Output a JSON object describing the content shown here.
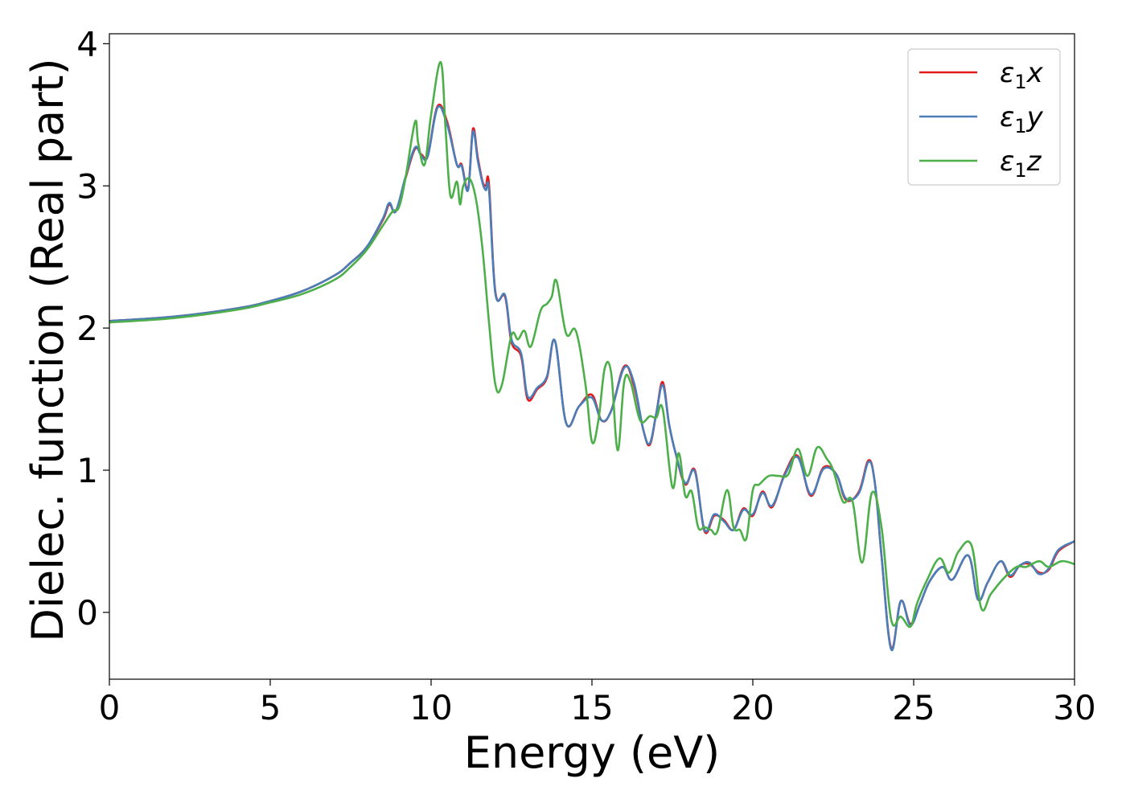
{
  "chart_data": {
    "type": "line",
    "title": "",
    "xlabel": "Energy (eV)",
    "ylabel": "Dielec. function (Real part)",
    "xlim": [
      0,
      30
    ],
    "ylim": [
      -0.47,
      4.07
    ],
    "xticks": [
      0,
      5,
      10,
      15,
      20,
      25,
      30
    ],
    "yticks": [
      0,
      1,
      2,
      3,
      4
    ],
    "xtick_labels": [
      "0",
      "5",
      "10",
      "15",
      "20",
      "25",
      "30"
    ],
    "ytick_labels": [
      "0",
      "1",
      "2",
      "3",
      "4"
    ],
    "grid": false,
    "legend_position": "top-right",
    "series": [
      {
        "name": "ε1x",
        "legend_main": "ε",
        "legend_sub": "1",
        "legend_var": "x",
        "color": "#e41a1c",
        "x": [
          0,
          2,
          4,
          5,
          6,
          7,
          7.5,
          8,
          8.5,
          8.7,
          8.9,
          9.2,
          9.5,
          9.7,
          9.9,
          10.2,
          10.5,
          10.8,
          10.95,
          11.15,
          11.3,
          11.45,
          11.6,
          11.7,
          11.8,
          12,
          12.3,
          12.5,
          12.8,
          13,
          13.3,
          13.6,
          13.85,
          14.2,
          14.6,
          15,
          15.3,
          15.6,
          16,
          16.3,
          16.6,
          16.8,
          17,
          17.2,
          17.4,
          17.6,
          17.9,
          18.2,
          18.5,
          18.8,
          19.1,
          19.4,
          19.7,
          20,
          20.3,
          20.6,
          21,
          21.4,
          21.8,
          22.2,
          22.6,
          22.9,
          23.3,
          23.6,
          23.8,
          24,
          24.3,
          24.6,
          24.9,
          25.2,
          25.5,
          25.9,
          26.2,
          26.7,
          27,
          27.3,
          27.7,
          28,
          28.3,
          28.6,
          28.9,
          29.2,
          29.5,
          30
        ],
        "y": [
          2.05,
          2.08,
          2.14,
          2.19,
          2.26,
          2.37,
          2.46,
          2.57,
          2.76,
          2.87,
          2.82,
          3.05,
          3.26,
          3.22,
          3.22,
          3.56,
          3.45,
          3.15,
          3.15,
          2.98,
          3.4,
          3.2,
          3.03,
          3.0,
          3.01,
          2.25,
          2.22,
          1.9,
          1.8,
          1.5,
          1.57,
          1.65,
          1.91,
          1.33,
          1.45,
          1.53,
          1.35,
          1.42,
          1.73,
          1.6,
          1.28,
          1.18,
          1.4,
          1.62,
          1.32,
          1.12,
          0.9,
          1.0,
          0.57,
          0.68,
          0.65,
          0.58,
          0.73,
          0.68,
          0.85,
          0.74,
          0.98,
          1.1,
          0.82,
          1.02,
          0.97,
          0.79,
          0.85,
          1.07,
          0.9,
          0.4,
          -0.25,
          0.08,
          -0.08,
          0.06,
          0.22,
          0.32,
          0.23,
          0.4,
          0.09,
          0.21,
          0.36,
          0.25,
          0.33,
          0.34,
          0.28,
          0.3,
          0.43,
          0.5
        ]
      },
      {
        "name": "ε1y",
        "legend_main": "ε",
        "legend_sub": "1",
        "legend_var": "y",
        "color": "#4a7eb8",
        "x": [
          0,
          2,
          4,
          5,
          6,
          7,
          7.5,
          8,
          8.5,
          8.7,
          8.9,
          9.2,
          9.5,
          9.7,
          9.9,
          10.2,
          10.5,
          10.8,
          10.95,
          11.15,
          11.3,
          11.45,
          11.6,
          11.7,
          11.8,
          12,
          12.3,
          12.5,
          12.8,
          13,
          13.3,
          13.6,
          13.85,
          14.2,
          14.6,
          15,
          15.3,
          15.6,
          16,
          16.3,
          16.6,
          16.8,
          17,
          17.2,
          17.4,
          17.6,
          17.9,
          18.2,
          18.5,
          18.8,
          19.1,
          19.4,
          19.7,
          20,
          20.3,
          20.6,
          21,
          21.4,
          21.8,
          22.2,
          22.6,
          22.9,
          23.3,
          23.6,
          23.8,
          24,
          24.3,
          24.6,
          24.9,
          25.2,
          25.5,
          25.9,
          26.2,
          26.7,
          27,
          27.3,
          27.7,
          28,
          28.3,
          28.6,
          28.9,
          29.2,
          29.5,
          30
        ],
        "y": [
          2.05,
          2.08,
          2.14,
          2.19,
          2.26,
          2.37,
          2.46,
          2.57,
          2.77,
          2.88,
          2.82,
          3.06,
          3.27,
          3.21,
          3.21,
          3.55,
          3.43,
          3.15,
          3.14,
          2.97,
          3.38,
          3.18,
          3.02,
          2.97,
          2.97,
          2.24,
          2.23,
          1.92,
          1.82,
          1.52,
          1.58,
          1.66,
          1.91,
          1.33,
          1.45,
          1.51,
          1.35,
          1.42,
          1.72,
          1.62,
          1.28,
          1.19,
          1.4,
          1.6,
          1.32,
          1.12,
          0.91,
          0.99,
          0.58,
          0.69,
          0.64,
          0.58,
          0.72,
          0.69,
          0.84,
          0.75,
          0.97,
          1.09,
          0.83,
          1.01,
          0.97,
          0.8,
          0.84,
          1.06,
          0.9,
          0.4,
          -0.26,
          0.08,
          -0.09,
          0.06,
          0.22,
          0.32,
          0.23,
          0.4,
          0.09,
          0.21,
          0.36,
          0.26,
          0.33,
          0.35,
          0.27,
          0.31,
          0.44,
          0.5
        ]
      },
      {
        "name": "ε1z",
        "legend_main": "ε",
        "legend_sub": "1",
        "legend_var": "z",
        "color": "#4daf4a",
        "x": [
          0,
          2,
          4,
          5,
          6,
          7,
          7.5,
          8,
          8.5,
          8.8,
          9,
          9.2,
          9.5,
          9.6,
          9.8,
          10,
          10.3,
          10.45,
          10.6,
          10.8,
          10.9,
          11,
          11.2,
          11.4,
          11.6,
          11.8,
          12,
          12.2,
          12.5,
          12.7,
          12.9,
          13.1,
          13.4,
          13.6,
          13.75,
          13.9,
          14.2,
          14.5,
          14.8,
          15,
          15.2,
          15.4,
          15.6,
          15.8,
          16,
          16.2,
          16.5,
          16.8,
          17,
          17.2,
          17.5,
          17.7,
          17.9,
          18.1,
          18.3,
          18.5,
          18.7,
          18.9,
          19.2,
          19.4,
          19.6,
          19.8,
          20,
          20.2,
          20.5,
          20.8,
          21.1,
          21.4,
          21.7,
          22,
          22.3,
          22.5,
          22.8,
          23.1,
          23.4,
          23.7,
          24,
          24.3,
          24.6,
          24.9,
          25.1,
          25.4,
          25.8,
          26.1,
          26.4,
          26.8,
          27.1,
          27.4,
          27.8,
          28.2,
          28.5,
          28.9,
          29.2,
          29.6,
          30
        ],
        "y": [
          2.04,
          2.07,
          2.13,
          2.18,
          2.24,
          2.34,
          2.43,
          2.55,
          2.72,
          2.82,
          2.85,
          3.05,
          3.45,
          3.3,
          3.15,
          3.5,
          3.87,
          3.4,
          2.93,
          3.03,
          2.87,
          3.0,
          3.05,
          2.9,
          2.55,
          2.04,
          1.6,
          1.6,
          1.95,
          1.92,
          1.98,
          1.87,
          2.12,
          2.17,
          2.22,
          2.33,
          1.96,
          1.98,
          1.6,
          1.2,
          1.35,
          1.72,
          1.68,
          1.14,
          1.62,
          1.62,
          1.35,
          1.38,
          1.37,
          1.43,
          0.88,
          1.12,
          0.82,
          0.85,
          0.6,
          0.6,
          0.58,
          0.57,
          0.86,
          0.6,
          0.58,
          0.52,
          0.86,
          0.9,
          0.96,
          0.96,
          0.97,
          1.15,
          0.96,
          1.16,
          1.08,
          1.0,
          0.78,
          0.78,
          0.35,
          0.84,
          0.6,
          -0.05,
          -0.03,
          -0.1,
          0.06,
          0.22,
          0.38,
          0.28,
          0.43,
          0.47,
          0.03,
          0.13,
          0.24,
          0.32,
          0.32,
          0.36,
          0.32,
          0.36,
          0.34
        ]
      }
    ]
  }
}
